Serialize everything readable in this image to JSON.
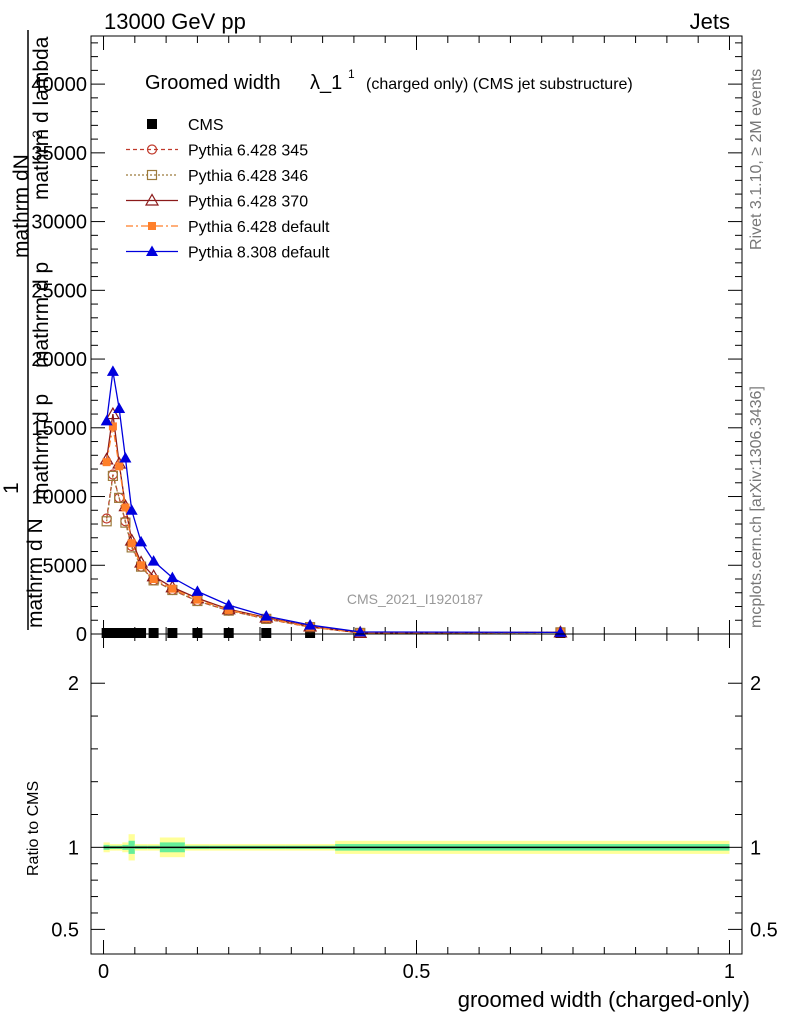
{
  "header": {
    "left": "13000 GeV pp",
    "right": "Jets"
  },
  "side_labels": {
    "rivet": "Rivet 3.1.10, ≥ 2M events",
    "mcplots": "mcplots.cern.ch [arXiv:1306.3436]"
  },
  "watermark": "CMS_2021_I1920187",
  "title": {
    "main": "Groomed width",
    "lambda": "λ_1",
    "sup": "1",
    "tail": "(charged only) (CMS jet substructure)"
  },
  "ylabel_main": {
    "numerator": "mathrm dN",
    "numerator_tail": "2",
    "numerator_2": "mathrm d p",
    "numerator_2b": "mathrm d lambda",
    "one": "1",
    "denominator": "mathrm d N",
    "denominator_tail": "mathrm d p"
  },
  "ylabel_ratio": "Ratio to CMS",
  "xlabel": "groomed width (charged-only)",
  "colors": {
    "cms": "#000000",
    "p345": "#c0392b",
    "p346": "#9c7a3c",
    "p370": "#8b1a1a",
    "p6def": "#ff7f2a",
    "p8def": "#0000dd",
    "band_outer": "#ffff99",
    "band_inner": "#66ee99"
  },
  "chart_data": [
    {
      "type": "line",
      "xlim": [
        -0.02,
        1.02
      ],
      "ylim": [
        0,
        43500
      ],
      "yticks": [
        0,
        5000,
        10000,
        15000,
        20000,
        25000,
        30000,
        35000,
        40000
      ],
      "ytick_labels": [
        "0",
        "5000",
        "10000",
        "15000",
        "20000",
        "25000",
        "30000",
        "35000",
        "40000"
      ],
      "legend_position": "top-left",
      "series": [
        {
          "name": "CMS",
          "marker": "square",
          "x": [
            0.005,
            0.015,
            0.025,
            0.035,
            0.045,
            0.06,
            0.08,
            0.11,
            0.15,
            0.2,
            0.26,
            0.33,
            0.41,
            0.73
          ],
          "values": [
            0,
            0,
            0,
            0,
            0,
            0,
            0,
            0,
            0,
            0,
            0,
            0,
            0,
            0
          ]
        },
        {
          "name": "Pythia 6.428 345",
          "marker": "circle-open",
          "dash": "4,3",
          "x": [
            0.005,
            0.015,
            0.025,
            0.035,
            0.045,
            0.06,
            0.08,
            0.11,
            0.15,
            0.2,
            0.26,
            0.33,
            0.41,
            0.73
          ],
          "values": [
            8400,
            11600,
            9900,
            8200,
            6400,
            4900,
            3900,
            3200,
            2400,
            1700,
            1100,
            500,
            80,
            120
          ]
        },
        {
          "name": "Pythia 6.428 346",
          "marker": "square-open",
          "dash": "2,2",
          "x": [
            0.005,
            0.015,
            0.025,
            0.035,
            0.045,
            0.06,
            0.08,
            0.11,
            0.15,
            0.2,
            0.26,
            0.33,
            0.41,
            0.73
          ],
          "values": [
            8200,
            11500,
            9900,
            8100,
            6300,
            4900,
            3900,
            3200,
            2400,
            1700,
            1100,
            500,
            80,
            120
          ]
        },
        {
          "name": "Pythia 6.428 370",
          "marker": "triangle-open",
          "dash": "",
          "x": [
            0.005,
            0.015,
            0.025,
            0.035,
            0.045,
            0.06,
            0.08,
            0.11,
            0.15,
            0.2,
            0.26,
            0.33,
            0.41,
            0.73
          ],
          "values": [
            12700,
            16000,
            12400,
            9300,
            6800,
            5200,
            4200,
            3400,
            2600,
            1800,
            1200,
            550,
            80,
            120
          ]
        },
        {
          "name": "Pythia 6.428 default",
          "marker": "square-filled",
          "dash": "7,3,2,3",
          "x": [
            0.005,
            0.015,
            0.025,
            0.035,
            0.045,
            0.06,
            0.08,
            0.11,
            0.15,
            0.2,
            0.26,
            0.33,
            0.41,
            0.73
          ],
          "values": [
            12500,
            15100,
            12200,
            9200,
            6600,
            5000,
            4000,
            3300,
            2500,
            1750,
            1150,
            520,
            80,
            120
          ]
        },
        {
          "name": "Pythia 8.308 default",
          "marker": "triangle-filled",
          "dash": "",
          "x": [
            0.005,
            0.015,
            0.025,
            0.035,
            0.045,
            0.06,
            0.08,
            0.11,
            0.15,
            0.2,
            0.26,
            0.33,
            0.41,
            0.73
          ],
          "values": [
            15500,
            19100,
            16400,
            12800,
            9000,
            6700,
            5300,
            4100,
            3100,
            2100,
            1300,
            650,
            150,
            120
          ]
        }
      ]
    },
    {
      "type": "area",
      "xlim": [
        -0.02,
        1.02
      ],
      "ylim": [
        0.35,
        2.3
      ],
      "yticks": [
        0.5,
        1,
        2
      ],
      "ytick_labels": [
        "0.5",
        "1",
        "2"
      ],
      "xticks": [
        0,
        0.5,
        1
      ],
      "xtick_labels": [
        "0",
        "0.5",
        "1"
      ],
      "reference_line": 1,
      "bands": {
        "edges": [
          0,
          0.01,
          0.02,
          0.03,
          0.04,
          0.05,
          0.07,
          0.09,
          0.13,
          0.17,
          0.23,
          0.29,
          0.37,
          1.0
        ],
        "outer": [
          0.03,
          0.02,
          0.02,
          0.03,
          0.08,
          0.02,
          0.02,
          0.06,
          0.02,
          0.02,
          0.02,
          0.02,
          0.04
        ],
        "inner": [
          0.015,
          0.01,
          0.01,
          0.015,
          0.04,
          0.01,
          0.01,
          0.03,
          0.01,
          0.01,
          0.01,
          0.01,
          0.02
        ]
      }
    }
  ]
}
